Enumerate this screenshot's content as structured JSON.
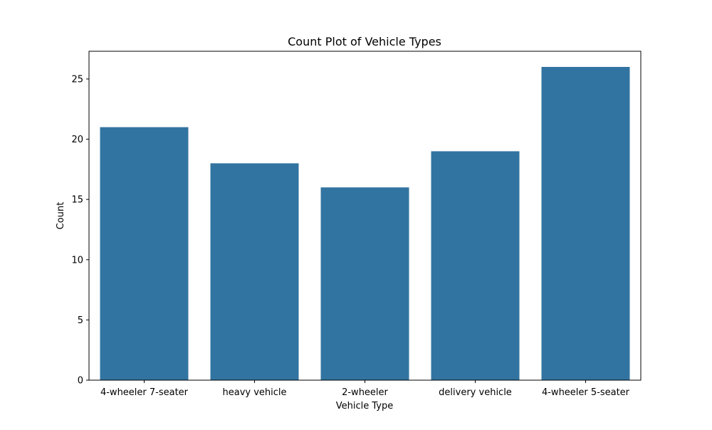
{
  "chart_data": {
    "type": "bar",
    "title": "Count Plot of Vehicle Types",
    "xlabel": "Vehicle Type",
    "ylabel": "Count",
    "categories": [
      "4-wheeler 7-seater",
      "heavy vehicle",
      "2-wheeler",
      "delivery vehicle",
      "4-wheeler 5-seater"
    ],
    "values": [
      21,
      18,
      16,
      19,
      26
    ],
    "ylim": [
      0,
      27.3
    ],
    "yticks": [
      0,
      5,
      10,
      15,
      20,
      25
    ],
    "grid": false,
    "bar_color": "#3274a1"
  }
}
